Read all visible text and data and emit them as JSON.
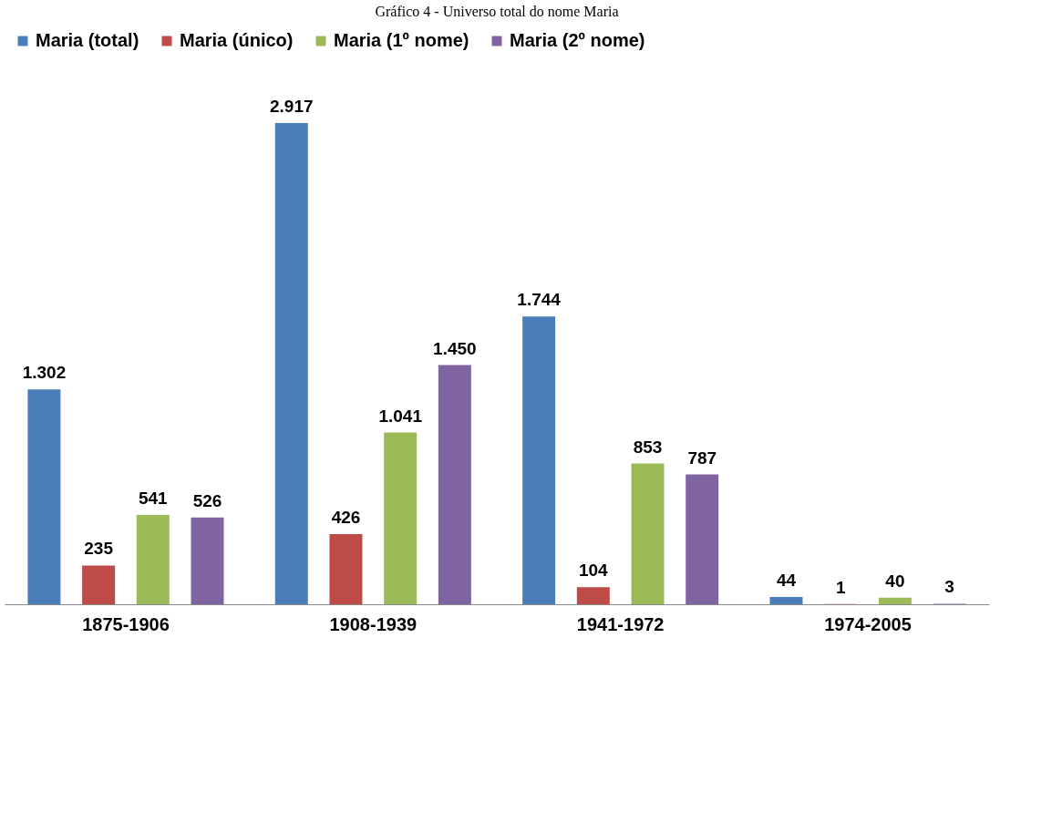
{
  "chart_data": {
    "type": "bar",
    "title": "Gráfico 4 - Universo total do nome Maria",
    "categories": [
      "1875-1906",
      "1908-1939",
      "1941-1972",
      "1974-2005"
    ],
    "series": [
      {
        "name": "Maria (total)",
        "color": "#4a7ebb",
        "values": [
          1302,
          2917,
          1744,
          44
        ],
        "value_labels": [
          "1.302",
          "2.917",
          "1.744",
          "44"
        ]
      },
      {
        "name": "Maria (único)",
        "color": "#be4b48",
        "values": [
          235,
          426,
          104,
          1
        ],
        "value_labels": [
          "235",
          "426",
          "104",
          "1"
        ]
      },
      {
        "name": "Maria (1º nome)",
        "color": "#9bbb59",
        "values": [
          541,
          1041,
          853,
          40
        ],
        "value_labels": [
          "541",
          "1.041",
          "853",
          "40"
        ]
      },
      {
        "name": "Maria (2º nome)",
        "color": "#8064a2",
        "values": [
          526,
          1450,
          787,
          3
        ],
        "value_labels": [
          "526",
          "1.450",
          "787",
          "3"
        ]
      }
    ],
    "legend": "top",
    "grid": false
  }
}
